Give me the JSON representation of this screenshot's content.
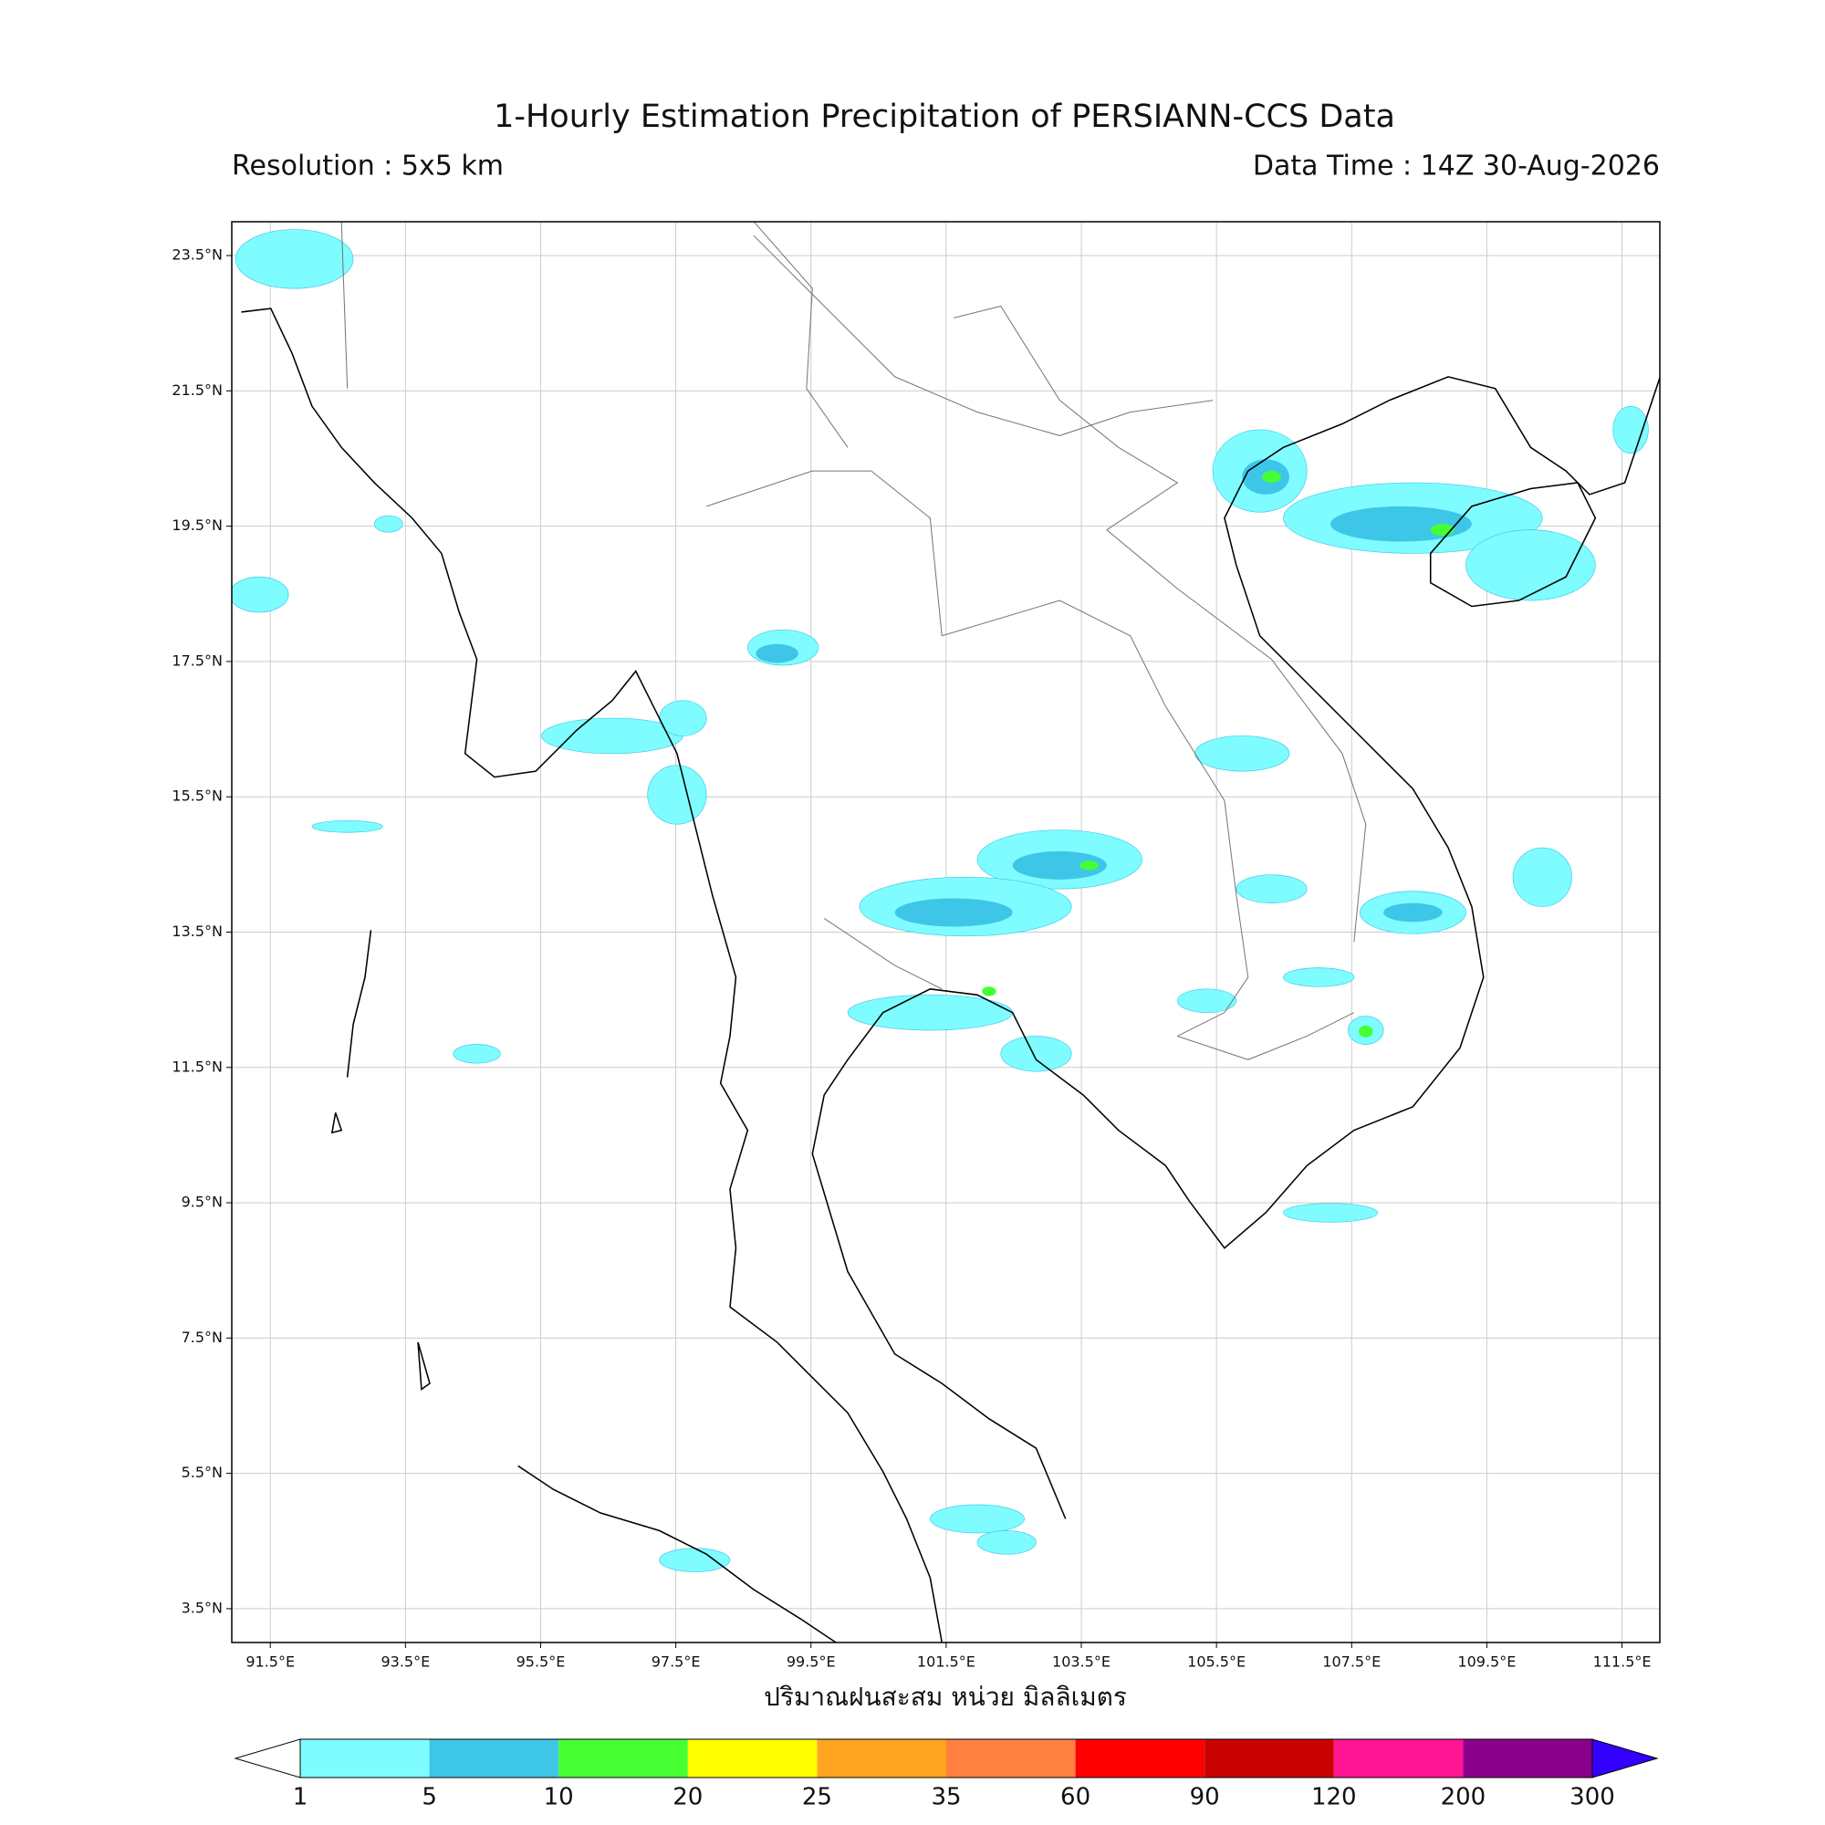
{
  "map": {
    "title": "1-Hourly Estimation Precipitation of PERSIANN-CCS Data",
    "resolution": "Resolution : 5x5 km",
    "data_time": "Data Time : 14Z 30-Aug-2026",
    "x_axis_label": "ปริมาณฝนสะสม หน่วย มิลลิเมตร",
    "lon_range": [
      90.93,
      112.06
    ],
    "lat_range": [
      3.0,
      24.0
    ],
    "lon_ticks": [
      {
        "value": 91.5,
        "label": "91.5°E"
      },
      {
        "value": 93.5,
        "label": "93.5°E"
      },
      {
        "value": 95.5,
        "label": "95.5°E"
      },
      {
        "value": 97.5,
        "label": "97.5°E"
      },
      {
        "value": 99.5,
        "label": "99.5°E"
      },
      {
        "value": 101.5,
        "label": "101.5°E"
      },
      {
        "value": 103.5,
        "label": "103.5°E"
      },
      {
        "value": 105.5,
        "label": "105.5°E"
      },
      {
        "value": 107.5,
        "label": "107.5°E"
      },
      {
        "value": 109.5,
        "label": "109.5°E"
      },
      {
        "value": 111.5,
        "label": "111.5°E"
      }
    ],
    "lat_ticks": [
      {
        "value": 23.5,
        "label": "23.5°N"
      },
      {
        "value": 21.5,
        "label": "21.5°N"
      },
      {
        "value": 19.5,
        "label": "19.5°N"
      },
      {
        "value": 17.5,
        "label": "17.5°N"
      },
      {
        "value": 15.5,
        "label": "15.5°N"
      },
      {
        "value": 13.5,
        "label": "13.5°N"
      },
      {
        "value": 11.5,
        "label": "11.5°N"
      },
      {
        "value": 9.5,
        "label": "9.5°N"
      },
      {
        "value": 7.5,
        "label": "7.5°N"
      },
      {
        "value": 5.5,
        "label": "5.5°N"
      },
      {
        "value": 3.5,
        "label": "3.5°N"
      }
    ],
    "colorbar": {
      "levels": [
        1,
        5,
        10,
        20,
        25,
        35,
        60,
        90,
        120,
        200,
        300
      ],
      "colors": [
        "#7ffcff",
        "#3ec6e8",
        "#45ff33",
        "#ffff00",
        "#ffa520",
        "#ff8040",
        "#ff0000",
        "#c80000",
        "#ff1493",
        "#8b008b"
      ],
      "under_color": "#ffffff",
      "over_color": "#3300ff"
    }
  }
}
